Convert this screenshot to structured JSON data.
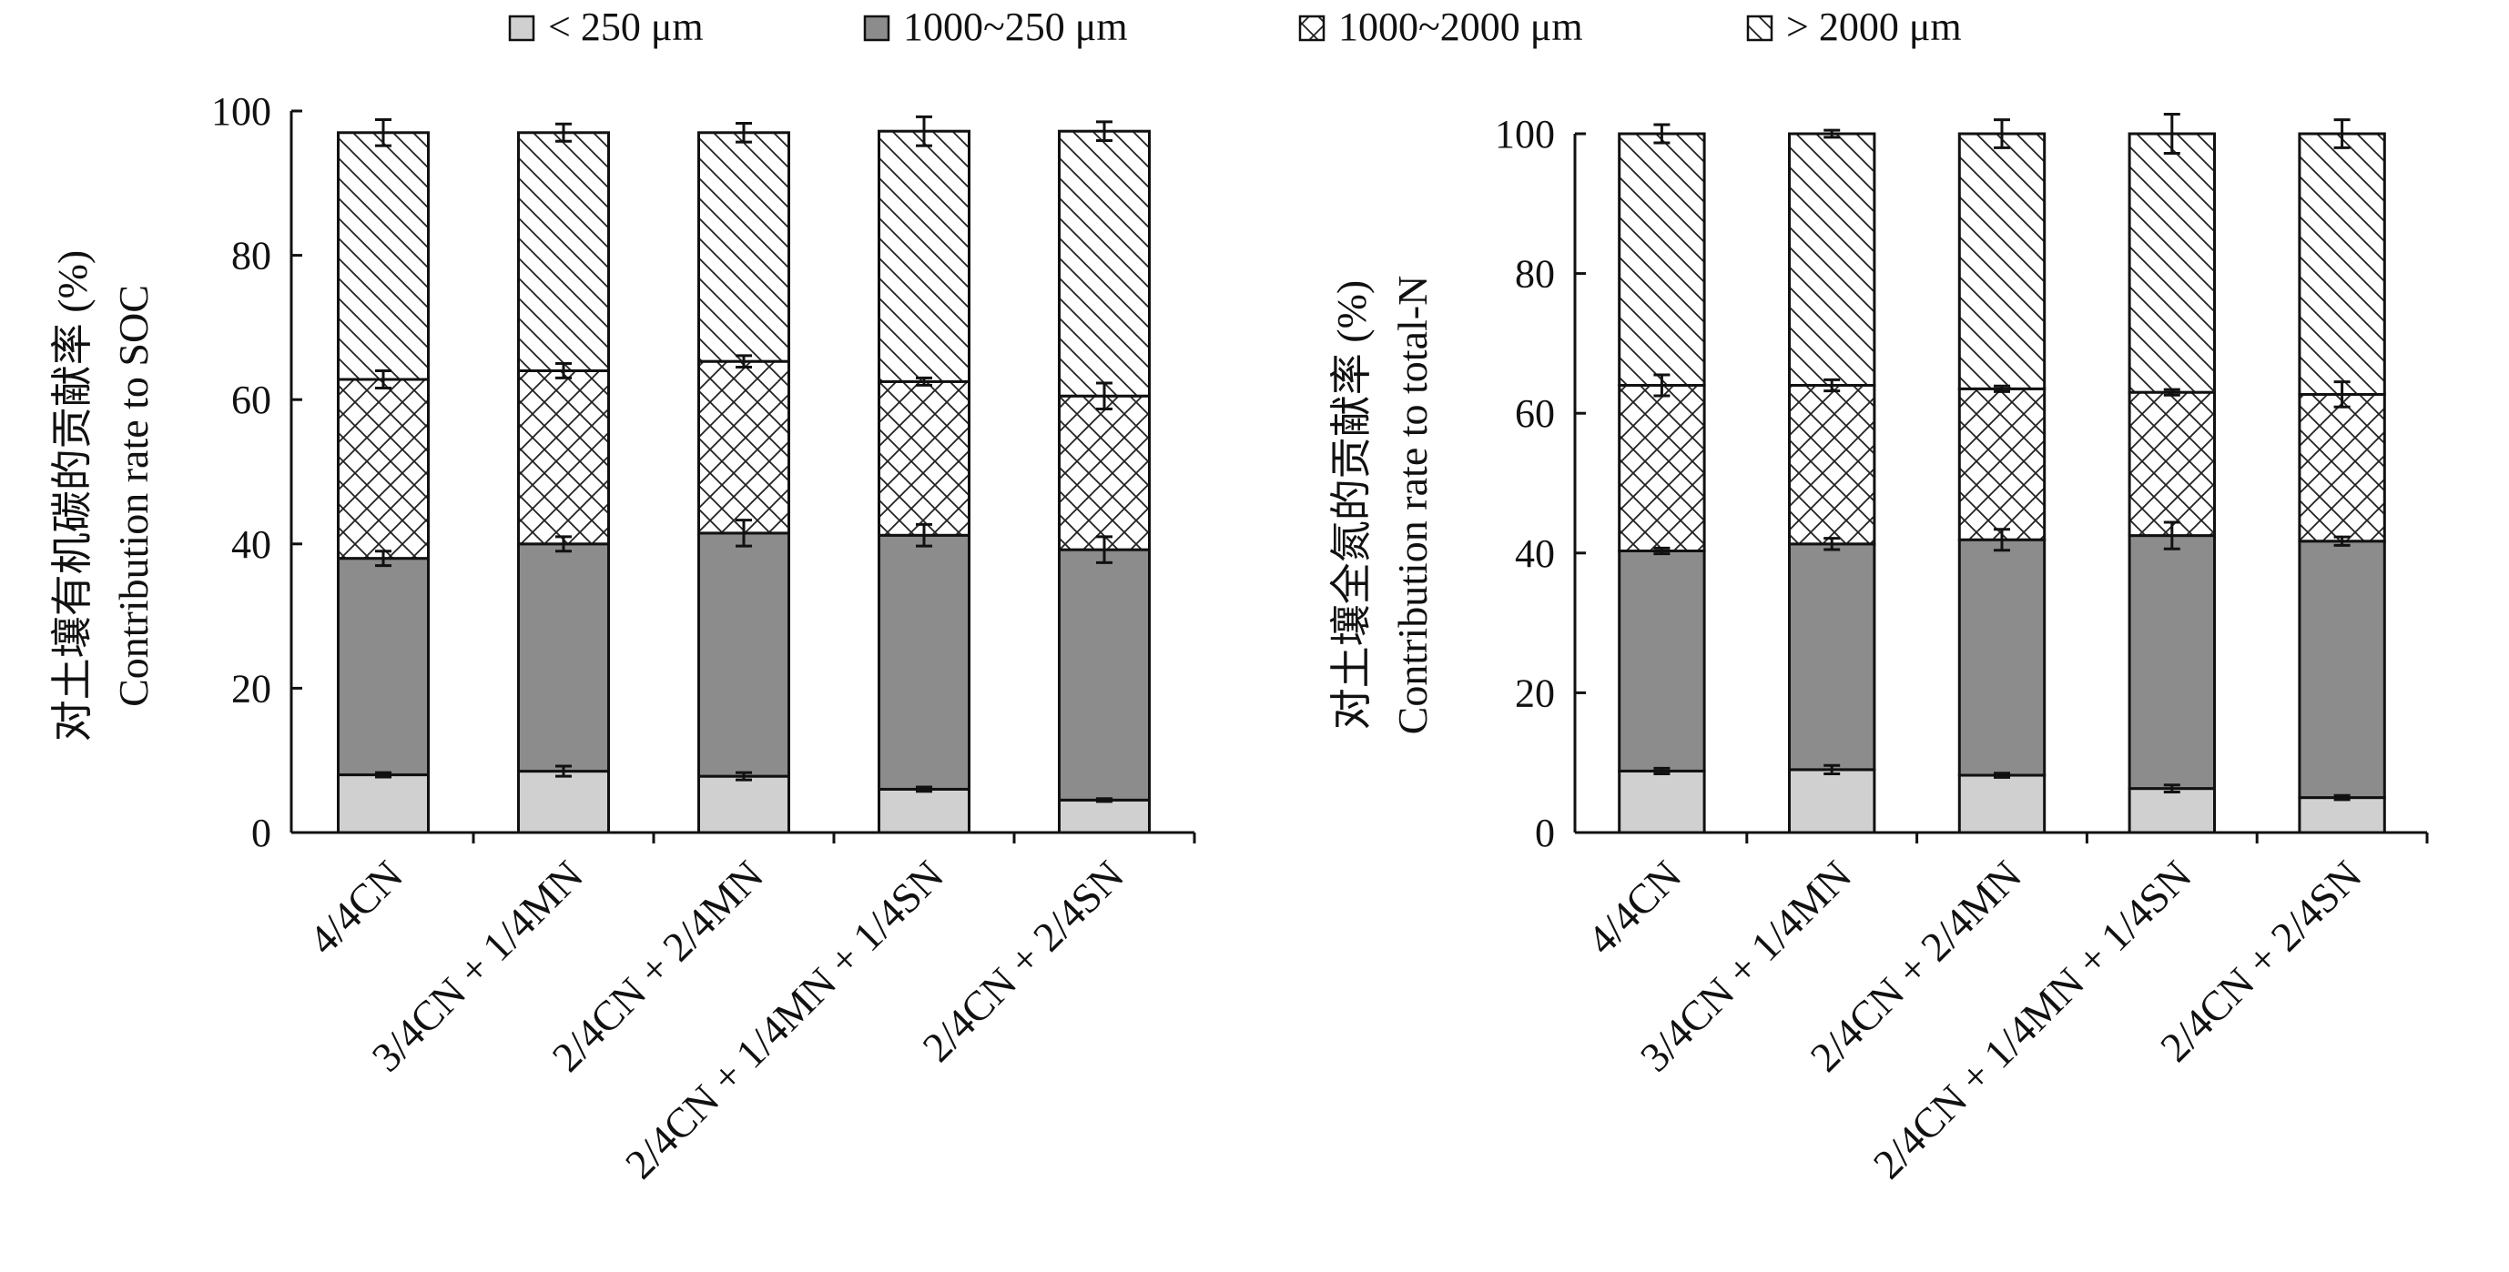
{
  "legend": [
    {
      "label": "< 250 μm",
      "pattern": "fill-light"
    },
    {
      "label": "1000~250 μm",
      "pattern": "fill-dark"
    },
    {
      "label": "1000~2000 μm",
      "pattern": "crosshatch"
    },
    {
      "label": "> 2000 μm",
      "pattern": "diagonal"
    }
  ],
  "colors": {
    "light": "#d0d0d0",
    "dark": "#8c8c8c",
    "stroke": "#111111"
  },
  "chart_data": [
    {
      "type": "bar",
      "stacked": true,
      "ylabel_cn": "对土壤有机碳的贡献率 (%)",
      "ylabel_en": "Contribution rate to SOC",
      "ylim": [
        0,
        100
      ],
      "yticks": [
        0,
        20,
        40,
        60,
        80,
        100
      ],
      "categories": [
        "4/4CN",
        "3/4CN + 1/4MN",
        "2/4CN + 2/4MN",
        "2/4CN + 1/4MN + 1/4SN",
        "2/4CN + 2/4SN"
      ],
      "series": [
        {
          "name": "< 250 μm",
          "values": [
            8.0,
            8.5,
            7.8,
            6.0,
            4.5
          ],
          "errors": [
            0.3,
            0.7,
            0.5,
            0.3,
            0.2
          ]
        },
        {
          "name": "1000~250 μm",
          "values": [
            30.0,
            31.5,
            33.7,
            35.2,
            34.7
          ],
          "errors": [
            1.0,
            1.0,
            1.8,
            1.5,
            1.8
          ]
        },
        {
          "name": "1000~2000 μm",
          "values": [
            24.8,
            24.0,
            23.8,
            21.3,
            21.3
          ],
          "errors": [
            1.2,
            1.0,
            0.8,
            0.5,
            1.8
          ]
        },
        {
          "name": "> 2000 μm",
          "values": [
            34.2,
            33.0,
            31.7,
            34.7,
            36.7
          ],
          "errors": [
            1.8,
            1.2,
            1.3,
            2.0,
            1.3
          ]
        }
      ]
    },
    {
      "type": "bar",
      "stacked": true,
      "ylabel_cn": "对土壤全氮的贡献率 (%)",
      "ylabel_en": "Contribution rate to total-N",
      "ylim": [
        0,
        100
      ],
      "yticks": [
        0,
        20,
        40,
        60,
        80,
        100
      ],
      "categories": [
        "4/4CN",
        "3/4CN + 1/4MN",
        "2/4CN + 2/4MN",
        "2/4CN + 1/4MN + 1/4SN",
        "2/4CN + 2/4SN"
      ],
      "series": [
        {
          "name": "< 250 μm",
          "values": [
            8.8,
            9.0,
            8.2,
            6.3,
            5.0
          ],
          "errors": [
            0.4,
            0.6,
            0.3,
            0.5,
            0.3
          ]
        },
        {
          "name": "1000~250 μm",
          "values": [
            31.5,
            32.3,
            33.7,
            36.2,
            36.7
          ],
          "errors": [
            0.4,
            0.8,
            1.5,
            1.9,
            0.6
          ]
        },
        {
          "name": "1000~2000 μm",
          "values": [
            23.7,
            22.7,
            21.6,
            20.5,
            21.0
          ],
          "errors": [
            1.5,
            0.8,
            0.4,
            0.4,
            1.8
          ]
        },
        {
          "name": "> 2000 μm",
          "values": [
            36.0,
            36.0,
            36.5,
            37.0,
            37.3
          ],
          "errors": [
            1.3,
            0.5,
            2.0,
            2.8,
            2.0
          ]
        }
      ]
    }
  ]
}
